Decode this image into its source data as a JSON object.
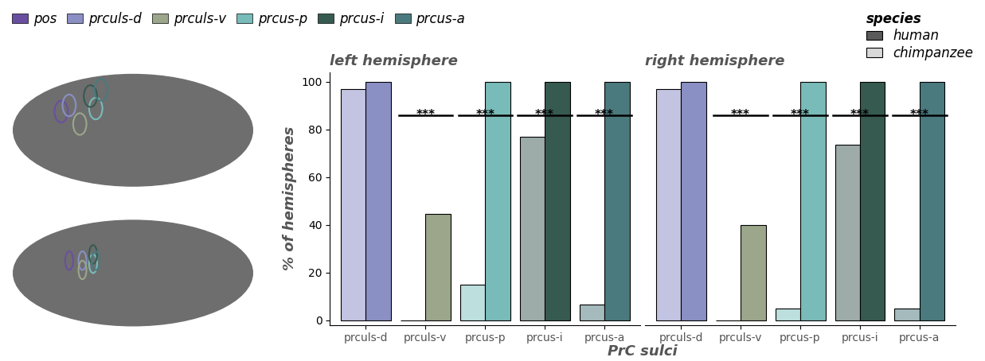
{
  "chart_data": [
    {
      "type": "bar",
      "title": "left hemisphere",
      "categories": [
        "prculs-d",
        "prculs-v",
        "prcus-p",
        "prcus-i",
        "prcus-a"
      ],
      "series": [
        {
          "name": "chimpanzee",
          "color": "#d9d9d9",
          "colors": [
            "#c2c4e2",
            "#cdd3c5",
            "#bde0de",
            "#9daca8",
            "#a5babc"
          ],
          "values": [
            97,
            0,
            15,
            77,
            6.5
          ]
        },
        {
          "name": "human",
          "color": "#5a5a5a",
          "colors": [
            "#8a8fc4",
            "#9ba68a",
            "#79bbb8",
            "#375a50",
            "#4a7a7e"
          ],
          "values": [
            100,
            44.5,
            100,
            100,
            100
          ]
        }
      ],
      "annotations": [
        {
          "category": "prculs-v",
          "text": "***",
          "y": 86
        },
        {
          "category": "prcus-p",
          "text": "***",
          "y": 86
        },
        {
          "category": "prcus-i",
          "text": "***",
          "y": 86
        },
        {
          "category": "prcus-a",
          "text": "***",
          "y": 86
        }
      ],
      "ylim": [
        -2,
        104
      ],
      "yticks": [
        0,
        20,
        40,
        60,
        80,
        100
      ]
    },
    {
      "type": "bar",
      "title": "right hemisphere",
      "categories": [
        "prculs-d",
        "prculs-v",
        "prcus-p",
        "prcus-i",
        "prcus-a"
      ],
      "series": [
        {
          "name": "chimpanzee",
          "color": "#d9d9d9",
          "colors": [
            "#c2c4e2",
            "#cdd3c5",
            "#bde0de",
            "#9daca8",
            "#a5babc"
          ],
          "values": [
            97,
            0,
            5,
            73.5,
            5
          ]
        },
        {
          "name": "human",
          "color": "#5a5a5a",
          "colors": [
            "#8a8fc4",
            "#9ba68a",
            "#79bbb8",
            "#375a50",
            "#4a7a7e"
          ],
          "values": [
            100,
            40,
            100,
            100,
            100
          ]
        }
      ],
      "annotations": [
        {
          "category": "prculs-v",
          "text": "***",
          "y": 86
        },
        {
          "category": "prcus-p",
          "text": "***",
          "y": 86
        },
        {
          "category": "prcus-i",
          "text": "***",
          "y": 86
        },
        {
          "category": "prcus-a",
          "text": "***",
          "y": 86
        }
      ],
      "ylim": [
        -2,
        104
      ],
      "yticks": [
        0,
        20,
        40,
        60,
        80,
        100
      ]
    }
  ],
  "figure": {
    "x_label": "PrC sulci",
    "y_label": "% of hemispheres",
    "sulci_legend": [
      {
        "name": "pos",
        "color": "#6a4fa0"
      },
      {
        "name": "prculs-d",
        "color": "#8a8fc4"
      },
      {
        "name": "prculs-v",
        "color": "#9ba68a"
      },
      {
        "name": "prcus-p",
        "color": "#79bbb8"
      },
      {
        "name": "prcus-i",
        "color": "#375a50"
      },
      {
        "name": "prcus-a",
        "color": "#4a7a7e"
      }
    ],
    "species_legend_title": "species"
  }
}
